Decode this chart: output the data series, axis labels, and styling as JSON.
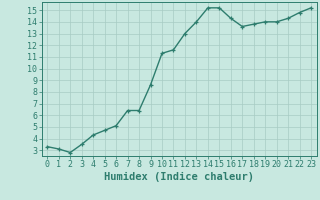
{
  "x": [
    0,
    1,
    2,
    3,
    4,
    5,
    6,
    7,
    8,
    9,
    10,
    11,
    12,
    13,
    14,
    15,
    16,
    17,
    18,
    19,
    20,
    21,
    22,
    23
  ],
  "y": [
    3.3,
    3.1,
    2.8,
    3.5,
    4.3,
    4.7,
    5.1,
    6.4,
    6.4,
    8.6,
    11.3,
    11.6,
    13.0,
    14.0,
    15.2,
    15.2,
    14.3,
    13.6,
    13.8,
    14.0,
    14.0,
    14.3,
    14.8,
    15.2
  ],
  "line_color": "#2e7d6e",
  "marker": "+",
  "bg_color": "#c8e8e0",
  "grid_color": "#a8ccc4",
  "xlabel": "Humidex (Indice chaleur)",
  "ylim": [
    2.5,
    15.7
  ],
  "xlim": [
    -0.5,
    23.5
  ],
  "yticks": [
    3,
    4,
    5,
    6,
    7,
    8,
    9,
    10,
    11,
    12,
    13,
    14,
    15
  ],
  "xticks": [
    0,
    1,
    2,
    3,
    4,
    5,
    6,
    7,
    8,
    9,
    10,
    11,
    12,
    13,
    14,
    15,
    16,
    17,
    18,
    19,
    20,
    21,
    22,
    23
  ],
  "tick_color": "#2e7d6e",
  "font_color": "#2e7d6e",
  "axis_color": "#2e7d6e",
  "label_fontsize": 7.5,
  "tick_fontsize": 6,
  "line_width": 1.0,
  "marker_size": 3.5
}
